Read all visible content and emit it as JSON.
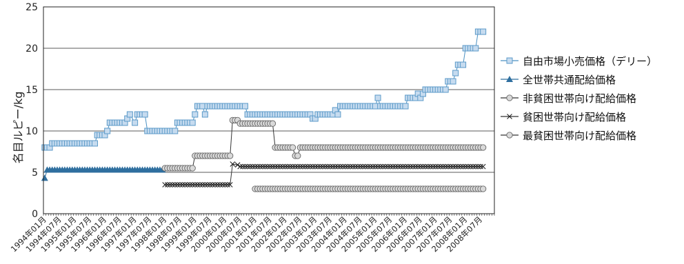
{
  "chart_data": {
    "type": "line",
    "title": "",
    "xlabel": "",
    "ylabel": "名目ルピー/kg",
    "ylim": [
      0,
      25
    ],
    "yticks": [
      0,
      5,
      10,
      15,
      20,
      25
    ],
    "grid": "horizontal",
    "legend_position": "right",
    "x_start": "1994-01",
    "x_end": "2008-12",
    "x_tick_labels": [
      "1994年01月",
      "1994年07月",
      "1995年01月",
      "1995年07月",
      "1996年01月",
      "1996年07月",
      "1997年01月",
      "1997年07月",
      "1998年01月",
      "1998年07月",
      "1999年01月",
      "1999年07月",
      "2000年01月",
      "2000年07月",
      "2001年01月",
      "2001年07月",
      "2002年01月",
      "2002年07月",
      "2003年01月",
      "2003年07月",
      "2004年01月",
      "2004年07月",
      "2005年01月",
      "2005年07月",
      "2006年01月",
      "2006年07月",
      "2007年01月",
      "2007年07月",
      "2008年01月",
      "2008年07月"
    ],
    "series": [
      {
        "name": "自由市場小売価格（デリー）",
        "marker": "square",
        "color": "#6baed6",
        "points": [
          [
            "1994-01",
            8.0
          ],
          [
            "1994-03",
            8.0
          ],
          [
            "1994-04",
            8.5
          ],
          [
            "1995-09",
            8.5
          ],
          [
            "1995-10",
            9.5
          ],
          [
            "1996-01",
            9.5
          ],
          [
            "1996-02",
            10.0
          ],
          [
            "1996-03",
            11.0
          ],
          [
            "1996-09",
            11.0
          ],
          [
            "1996-10",
            11.5
          ],
          [
            "1996-11",
            12.0
          ],
          [
            "1997-01",
            11.0
          ],
          [
            "1997-02",
            12.0
          ],
          [
            "1997-05",
            12.0
          ],
          [
            "1997-06",
            10.0
          ],
          [
            "1998-05",
            10.0
          ],
          [
            "1998-06",
            11.0
          ],
          [
            "1998-12",
            11.0
          ],
          [
            "1999-01",
            12.0
          ],
          [
            "1999-02",
            13.0
          ],
          [
            "1999-04",
            13.0
          ],
          [
            "1999-05",
            12.0
          ],
          [
            "1999-06",
            13.0
          ],
          [
            "2000-09",
            13.0
          ],
          [
            "2000-10",
            12.0
          ],
          [
            "2002-11",
            12.0
          ],
          [
            "2002-12",
            11.5
          ],
          [
            "2003-01",
            11.5
          ],
          [
            "2003-02",
            12.0
          ],
          [
            "2003-08",
            12.0
          ],
          [
            "2003-09",
            12.5
          ],
          [
            "2003-10",
            12.0
          ],
          [
            "2003-11",
            13.0
          ],
          [
            "2005-01",
            13.0
          ],
          [
            "2005-02",
            14.0
          ],
          [
            "2005-03",
            13.0
          ],
          [
            "2006-01",
            13.0
          ],
          [
            "2006-02",
            14.0
          ],
          [
            "2006-05",
            14.0
          ],
          [
            "2006-06",
            14.5
          ],
          [
            "2006-07",
            14.0
          ],
          [
            "2006-08",
            14.5
          ],
          [
            "2006-09",
            15.0
          ],
          [
            "2007-05",
            15.0
          ],
          [
            "2007-06",
            16.0
          ],
          [
            "2007-08",
            16.0
          ],
          [
            "2007-09",
            17.0
          ],
          [
            "2007-10",
            18.0
          ],
          [
            "2007-12",
            18.0
          ],
          [
            "2008-01",
            20.0
          ],
          [
            "2008-05",
            20.0
          ],
          [
            "2008-06",
            22.0
          ],
          [
            "2008-08",
            22.0
          ]
        ]
      },
      {
        "name": "全世帯共通配給価格",
        "marker": "triangle",
        "color": "#3a7ca5",
        "points": [
          [
            "1994-01",
            4.3
          ],
          [
            "1994-02",
            5.3
          ],
          [
            "1997-12",
            5.3
          ]
        ]
      },
      {
        "name": "非貧困世帯向け配給価格",
        "marker": "circle",
        "color": "#bdbdbd",
        "segments": [
          [
            [
              "1998-01",
              5.5
            ],
            [
              "1998-12",
              5.5
            ],
            [
              "1999-01",
              7.0
            ],
            [
              "2000-03",
              7.0
            ],
            [
              "2000-04",
              11.3
            ],
            [
              "2000-06",
              11.3
            ],
            [
              "2000-07",
              10.9
            ],
            [
              "2001-08",
              10.9
            ],
            [
              "2001-09",
              8.0
            ],
            [
              "2002-04",
              8.0
            ],
            [
              "2002-05",
              7.0
            ],
            [
              "2002-06",
              7.0
            ],
            [
              "2002-07",
              8.0
            ],
            [
              "2008-08",
              8.0
            ]
          ],
          [
            [
              "2001-01",
              3.0
            ],
            [
              "2008-08",
              3.0
            ]
          ]
        ]
      },
      {
        "name": "貧困世帯向け配給価格",
        "marker": "cross",
        "color": "#222222",
        "points": [
          [
            "1998-01",
            3.5
          ],
          [
            "2000-03",
            3.5
          ],
          [
            "2000-04",
            6.0
          ],
          [
            "2000-06",
            5.9
          ],
          [
            "2000-07",
            5.7
          ],
          [
            "2008-08",
            5.7
          ]
        ]
      },
      {
        "name": "最貧困世帯向け配給価格",
        "marker": "circle",
        "color": "#bdbdbd",
        "points": []
      }
    ]
  }
}
